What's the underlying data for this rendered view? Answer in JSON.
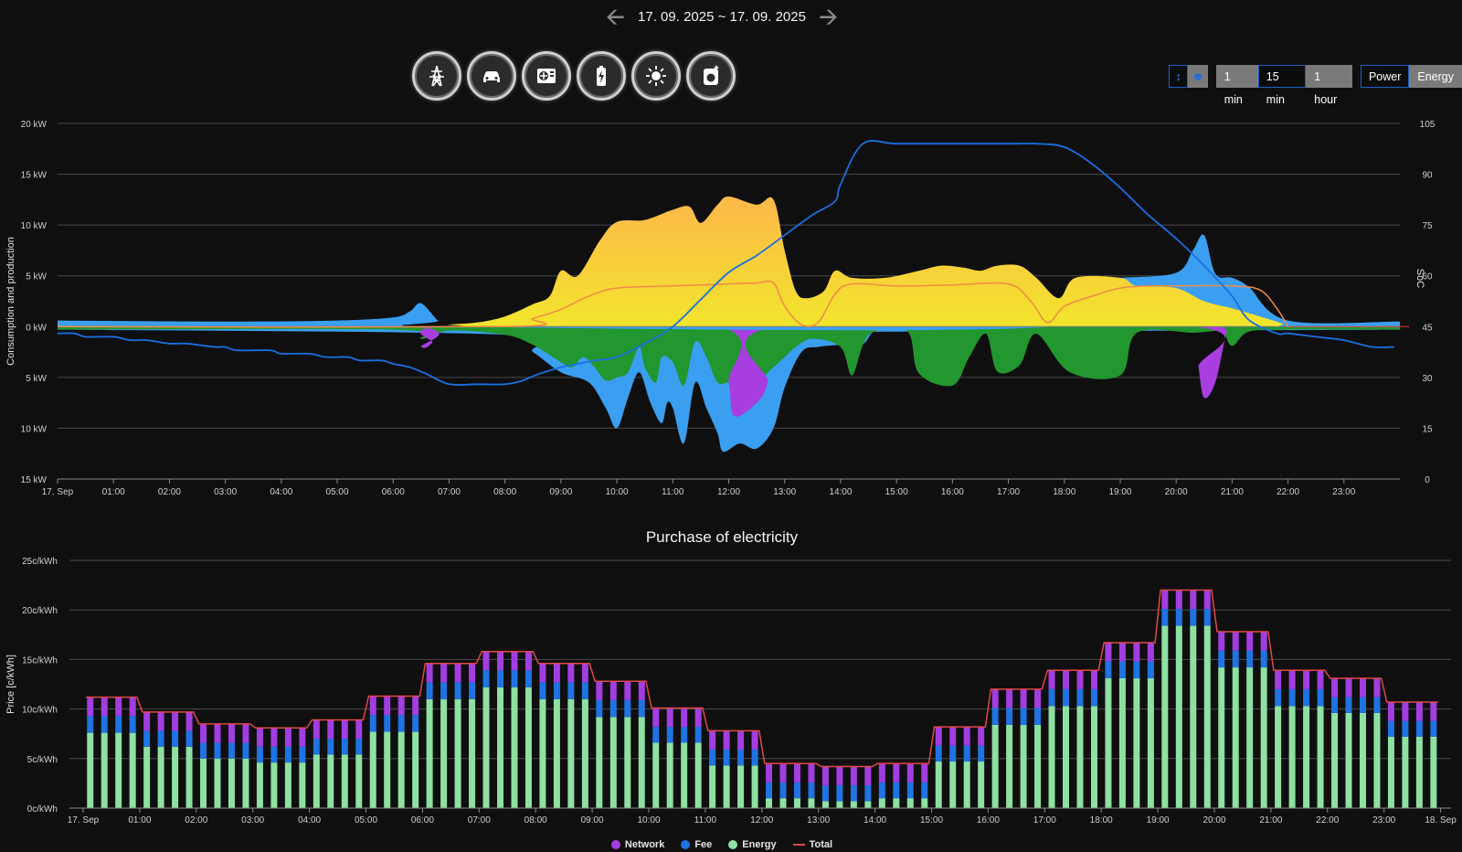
{
  "header": {
    "date_range": "17. 09. 2025 ~ 17. 09. 2025",
    "prev_icon": "arrow-left-icon",
    "next_icon": "arrow-right-icon"
  },
  "devices": [
    {
      "icon": "power-grid-icon"
    },
    {
      "icon": "car-icon"
    },
    {
      "icon": "heat-pump-icon"
    },
    {
      "icon": "battery-icon"
    },
    {
      "icon": "sun-icon"
    },
    {
      "icon": "washing-machine-icon"
    }
  ],
  "controls": {
    "scale_icon": "vertical-arrows-icon",
    "intervals": [
      {
        "label": "1 min",
        "active": false
      },
      {
        "label": "15 min",
        "active": true
      },
      {
        "label": "1 hour",
        "active": false
      }
    ],
    "modes": [
      {
        "label": "Power",
        "active": true
      },
      {
        "label": "Energy",
        "active": false
      }
    ]
  },
  "power_chart": {
    "ylabel": "Consumption and production",
    "y2label": "SoC",
    "y_ticks": [
      "20 kW",
      "15 kW",
      "10 kW",
      "5 kW",
      "0 kW",
      "5 kW",
      "10 kW",
      "15 kW"
    ],
    "y2_ticks": [
      "105",
      "90",
      "75",
      "60",
      "45",
      "30",
      "15",
      "0"
    ],
    "x_ticks": [
      "17. Sep",
      "01:00",
      "02:00",
      "03:00",
      "04:00",
      "05:00",
      "06:00",
      "07:00",
      "08:00",
      "09:00",
      "10:00",
      "11:00",
      "12:00",
      "13:00",
      "14:00",
      "15:00",
      "16:00",
      "17:00",
      "18:00",
      "19:00",
      "20:00",
      "21:00",
      "22:00",
      "23:00"
    ],
    "ylim": [
      -15,
      20
    ],
    "y2lim": [
      0,
      105
    ],
    "colors": {
      "solar": "#f2e52c",
      "grid_import": "#3a9ff0",
      "grid_export": "#22962f",
      "battery_discharge": "#a83ee0",
      "home": "#f08a45",
      "soc": "#1a6fe0"
    },
    "series": {
      "solar_production": [
        [
          0,
          0
        ],
        [
          6.7,
          0
        ],
        [
          7,
          0.2
        ],
        [
          7.5,
          0.4
        ],
        [
          8,
          1
        ],
        [
          8.5,
          2.2
        ],
        [
          8.8,
          3
        ],
        [
          9,
          5.5
        ],
        [
          9.3,
          5
        ],
        [
          9.7,
          8.5
        ],
        [
          10,
          10.3
        ],
        [
          10.5,
          10.5
        ],
        [
          11,
          11.5
        ],
        [
          11.3,
          11.8
        ],
        [
          11.5,
          10.2
        ],
        [
          11.8,
          12
        ],
        [
          12,
          12.8
        ],
        [
          12.5,
          12
        ],
        [
          12.8,
          12.5
        ],
        [
          13,
          7.5
        ],
        [
          13.2,
          3.5
        ],
        [
          13.4,
          2.8
        ],
        [
          13.7,
          3.5
        ],
        [
          13.9,
          5.5
        ],
        [
          14.2,
          4.8
        ],
        [
          14.8,
          4.8
        ],
        [
          15.4,
          5.5
        ],
        [
          15.8,
          6
        ],
        [
          16.2,
          5.8
        ],
        [
          16.5,
          5.5
        ],
        [
          16.8,
          6
        ],
        [
          17.2,
          6
        ],
        [
          17.5,
          4.8
        ],
        [
          17.9,
          2.8
        ],
        [
          18.2,
          4.8
        ],
        [
          19,
          4.8
        ],
        [
          19.3,
          4
        ],
        [
          20,
          3.8
        ],
        [
          20.5,
          2.5
        ],
        [
          21,
          1.8
        ],
        [
          21.5,
          1
        ],
        [
          21.9,
          0.3
        ],
        [
          22,
          0
        ],
        [
          24,
          0
        ]
      ],
      "grid_import": [
        [
          0,
          0.6
        ],
        [
          3,
          0.5
        ],
        [
          5,
          0.6
        ],
        [
          6,
          0.9
        ],
        [
          6.3,
          1.5
        ],
        [
          6.5,
          2.3
        ],
        [
          6.8,
          0.6
        ],
        [
          7,
          0
        ],
        [
          17.8,
          0
        ],
        [
          18.3,
          4.5
        ],
        [
          19,
          4.8
        ],
        [
          20,
          5.3
        ],
        [
          20.3,
          7.5
        ],
        [
          20.5,
          9
        ],
        [
          20.7,
          5.2
        ],
        [
          21,
          4.8
        ],
        [
          21.3,
          3.9
        ],
        [
          22,
          0.6
        ],
        [
          24,
          0.5
        ]
      ],
      "grid_export": [
        [
          0,
          -0.3
        ],
        [
          6,
          -0.3
        ],
        [
          6.5,
          -1.2
        ],
        [
          7,
          -0.4
        ],
        [
          8,
          -0.8
        ],
        [
          8.5,
          -1.8
        ],
        [
          9,
          -3.5
        ],
        [
          9.2,
          -4
        ],
        [
          9.4,
          -3
        ],
        [
          9.6,
          -4
        ],
        [
          9.8,
          -5.3
        ],
        [
          10,
          -5
        ],
        [
          10.2,
          -4.5
        ],
        [
          10.4,
          -2
        ],
        [
          10.5,
          -4
        ],
        [
          10.7,
          -5.5
        ],
        [
          10.8,
          -3
        ],
        [
          11,
          -3.5
        ],
        [
          11.2,
          -5.8
        ],
        [
          11.4,
          -1.5
        ],
        [
          11.6,
          -3
        ],
        [
          11.8,
          -5.5
        ],
        [
          12,
          -5.5
        ],
        [
          12.3,
          -5.8
        ],
        [
          12.5,
          -5.5
        ],
        [
          12.8,
          -4
        ],
        [
          13,
          -3
        ],
        [
          13.2,
          -2
        ],
        [
          13.5,
          -1.2
        ],
        [
          14,
          -2
        ],
        [
          14.2,
          -4.8
        ],
        [
          14.4,
          -1.8
        ],
        [
          14.6,
          -0.5
        ],
        [
          15.2,
          -0.5
        ],
        [
          15.4,
          -4.6
        ],
        [
          16,
          -5.8
        ],
        [
          16.3,
          -3
        ],
        [
          16.6,
          -0.7
        ],
        [
          16.8,
          -4.4
        ],
        [
          17.2,
          -3.8
        ],
        [
          17.5,
          -0.7
        ],
        [
          18.1,
          -4.5
        ],
        [
          19,
          -4.8
        ],
        [
          19.3,
          -0.6
        ],
        [
          20.3,
          -0.6
        ],
        [
          20.8,
          -0.5
        ],
        [
          21,
          -1.9
        ],
        [
          21.3,
          -0.5
        ],
        [
          22,
          -0.3
        ],
        [
          24,
          -0.3
        ]
      ],
      "grid_import_neg": [
        [
          0,
          -0.3
        ],
        [
          8,
          -0.8
        ],
        [
          8.5,
          -2.5
        ],
        [
          9,
          -4.5
        ],
        [
          9.5,
          -5.5
        ],
        [
          9.8,
          -8
        ],
        [
          10,
          -10
        ],
        [
          10.2,
          -7
        ],
        [
          10.4,
          -4.5
        ],
        [
          10.6,
          -7.5
        ],
        [
          10.8,
          -9.5
        ],
        [
          10.9,
          -7.5
        ],
        [
          11,
          -8
        ],
        [
          11.2,
          -11.5
        ],
        [
          11.4,
          -5.5
        ],
        [
          11.6,
          -8
        ],
        [
          11.8,
          -10.5
        ],
        [
          11.9,
          -12.3
        ],
        [
          12.2,
          -11.5
        ],
        [
          12.5,
          -12
        ],
        [
          12.8,
          -10
        ],
        [
          13,
          -6
        ],
        [
          13.3,
          -2.5
        ],
        [
          13.6,
          -2
        ],
        [
          14,
          -1.8
        ],
        [
          14.4,
          -1.7
        ],
        [
          14.6,
          -0.5
        ],
        [
          15,
          -0.5
        ],
        [
          24,
          -0.3
        ]
      ],
      "battery_discharge": [
        [
          0,
          0
        ],
        [
          6.3,
          0
        ],
        [
          6.5,
          -2
        ],
        [
          6.7,
          -1.6
        ],
        [
          6.9,
          0
        ],
        [
          11.8,
          0
        ],
        [
          12,
          -5.5
        ],
        [
          12.1,
          -8.8
        ],
        [
          12.5,
          -7.5
        ],
        [
          12.7,
          -5.5
        ],
        [
          12.9,
          0
        ],
        [
          20.3,
          0
        ],
        [
          20.4,
          -4
        ],
        [
          20.5,
          -7
        ],
        [
          20.7,
          -5.5
        ],
        [
          20.9,
          -0.6
        ],
        [
          21,
          0
        ],
        [
          24,
          0
        ]
      ],
      "home_consumption": [
        [
          0,
          0
        ],
        [
          8,
          0
        ],
        [
          8.5,
          0.8
        ],
        [
          9,
          1.7
        ],
        [
          9.5,
          3
        ],
        [
          10,
          3.8
        ],
        [
          11,
          4
        ],
        [
          12,
          4.2
        ],
        [
          12.5,
          4.3
        ],
        [
          12.8,
          4.3
        ],
        [
          13,
          2
        ],
        [
          13.3,
          0.2
        ],
        [
          13.6,
          0.4
        ],
        [
          13.9,
          3.2
        ],
        [
          14.2,
          4.2
        ],
        [
          15,
          4
        ],
        [
          16,
          4.1
        ],
        [
          17,
          4.2
        ],
        [
          17.4,
          2.5
        ],
        [
          17.7,
          0.4
        ],
        [
          18,
          2
        ],
        [
          18.5,
          3
        ],
        [
          19,
          3.8
        ],
        [
          19.5,
          4
        ],
        [
          20,
          4
        ],
        [
          21,
          4
        ],
        [
          21.5,
          3.6
        ],
        [
          21.8,
          1.8
        ],
        [
          22,
          0
        ]
      ],
      "soc": [
        [
          0,
          43
        ],
        [
          0.3,
          43
        ],
        [
          0.5,
          42
        ],
        [
          1,
          42
        ],
        [
          1.3,
          41
        ],
        [
          1.6,
          41
        ],
        [
          2,
          40
        ],
        [
          2.3,
          40
        ],
        [
          2.8,
          39
        ],
        [
          3,
          39
        ],
        [
          3.2,
          38
        ],
        [
          3.8,
          38
        ],
        [
          4,
          37
        ],
        [
          4.5,
          37
        ],
        [
          4.8,
          36
        ],
        [
          5.2,
          36
        ],
        [
          5.4,
          35
        ],
        [
          5.8,
          35
        ],
        [
          6,
          34
        ],
        [
          6.3,
          33
        ],
        [
          6.6,
          31
        ],
        [
          7,
          28
        ],
        [
          7.5,
          28
        ],
        [
          8,
          28
        ],
        [
          8.3,
          29
        ],
        [
          8.6,
          31
        ],
        [
          9,
          33
        ],
        [
          9.3,
          34
        ],
        [
          9.6,
          35
        ],
        [
          10,
          36
        ],
        [
          10.5,
          40
        ],
        [
          11,
          45
        ],
        [
          11.5,
          53
        ],
        [
          12,
          61
        ],
        [
          12.5,
          66
        ],
        [
          13,
          72
        ],
        [
          13.5,
          78
        ],
        [
          13.9,
          82
        ],
        [
          14,
          87
        ],
        [
          14.4,
          99
        ],
        [
          15,
          99
        ],
        [
          16,
          99
        ],
        [
          17,
          99
        ],
        [
          17.5,
          99
        ],
        [
          18,
          98
        ],
        [
          18.5,
          93
        ],
        [
          19,
          86
        ],
        [
          19.5,
          78
        ],
        [
          20,
          71
        ],
        [
          20.5,
          63
        ],
        [
          21,
          54
        ],
        [
          21.3,
          47
        ],
        [
          21.8,
          43
        ],
        [
          22,
          43
        ],
        [
          22.5,
          42
        ],
        [
          23,
          41
        ],
        [
          23.5,
          39
        ],
        [
          23.9,
          39
        ]
      ]
    }
  },
  "chart_data": {
    "type": "bar",
    "title": "Purchase of electricity",
    "ylabel": "Price [c/kWh]",
    "y_ticks": [
      "25c/kWh",
      "20c/kWh",
      "15c/kWh",
      "10c/kWh",
      "5c/kWh",
      "0c/kWh"
    ],
    "x_ticks": [
      "17. Sep",
      "01:00",
      "02:00",
      "03:00",
      "04:00",
      "05:00",
      "06:00",
      "07:00",
      "08:00",
      "09:00",
      "10:00",
      "11:00",
      "12:00",
      "13:00",
      "14:00",
      "15:00",
      "16:00",
      "17:00",
      "18:00",
      "19:00",
      "20:00",
      "21:00",
      "22:00",
      "23:00",
      "18. Sep"
    ],
    "ylim": [
      0,
      25
    ],
    "interval": "15 min",
    "colors": {
      "Network": "#a23ee0",
      "Fee": "#1f73e2",
      "Energy": "#8fe0a3",
      "Total": "#e04848"
    },
    "legend": [
      "Network",
      "Fee",
      "Energy",
      "Total"
    ],
    "hourly_energy": [
      7.6,
      6.2,
      5.0,
      4.6,
      5.4,
      7.7,
      11.0,
      12.2,
      11.0,
      9.2,
      6.6,
      4.3,
      1.0,
      0.7,
      1.0,
      4.7,
      8.4,
      10.3,
      13.1,
      18.4,
      14.2,
      10.3,
      9.6,
      7.2
    ],
    "hourly_fee": [
      1.7,
      1.6,
      1.6,
      1.6,
      1.6,
      1.7,
      1.7,
      1.7,
      1.7,
      1.7,
      1.6,
      1.6,
      1.6,
      1.6,
      1.6,
      1.6,
      1.7,
      1.7,
      1.7,
      1.7,
      1.7,
      1.7,
      1.6,
      1.6
    ],
    "hourly_network": [
      1.9,
      1.9,
      1.9,
      1.9,
      1.9,
      1.9,
      1.9,
      1.9,
      1.9,
      1.9,
      1.9,
      1.9,
      1.9,
      1.9,
      1.9,
      1.9,
      1.9,
      1.9,
      1.9,
      1.9,
      1.9,
      1.9,
      1.9,
      1.9
    ]
  }
}
